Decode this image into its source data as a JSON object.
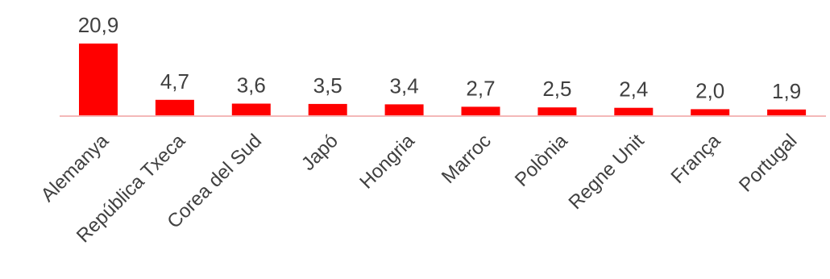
{
  "chart_data": {
    "type": "bar",
    "categories": [
      "Alemanya",
      "República Txeca",
      "Corea del Sud",
      "Japó",
      "Hongria",
      "Marroc",
      "Polònia",
      "Regne Unit",
      "França",
      "Portugal"
    ],
    "values": [
      20.9,
      4.7,
      3.6,
      3.5,
      3.4,
      2.7,
      2.5,
      2.4,
      2.0,
      1.9
    ],
    "value_labels": [
      "20,9",
      "4,7",
      "3,6",
      "3,5",
      "3,4",
      "2,7",
      "2,5",
      "2,4",
      "2,0",
      "1,9"
    ],
    "title": "",
    "xlabel": "",
    "ylabel": "",
    "ylim": [
      0,
      20.9
    ],
    "grid": false,
    "legend": "none",
    "colors": {
      "bar": "#ff0000",
      "baseline": "#f4b8b8",
      "text": "#404040"
    }
  }
}
